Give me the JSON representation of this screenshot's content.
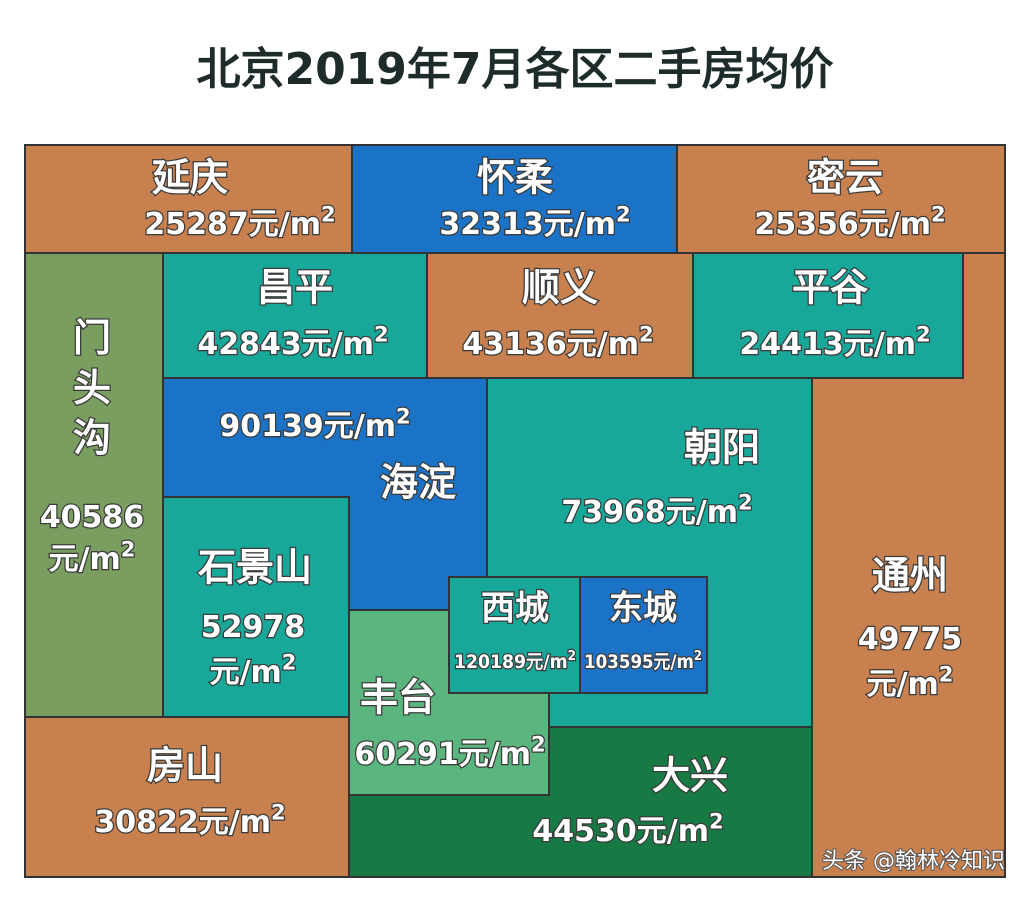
{
  "title": "北京2019年7月各区二手房均价",
  "unit": "元/m",
  "unit_power": "2",
  "regions": [
    {
      "name": "延庆",
      "price": 25287
    },
    {
      "name": "怀柔",
      "price": 32313
    },
    {
      "name": "密云",
      "price": 25356
    },
    {
      "name": "昌平",
      "price": 42843
    },
    {
      "name": "顺义",
      "price": 43136
    },
    {
      "name": "平谷",
      "price": 24413
    },
    {
      "name": "门头沟",
      "price": 40586
    },
    {
      "name": "海淀",
      "price": 90139
    },
    {
      "name": "朝阳",
      "price": 73968
    },
    {
      "name": "石景山",
      "price": 52978
    },
    {
      "name": "西城",
      "price": 120189
    },
    {
      "name": "东城",
      "price": 103595
    },
    {
      "name": "丰台",
      "price": 60291
    },
    {
      "name": "通州",
      "price": 49775
    },
    {
      "name": "房山",
      "price": 30822
    },
    {
      "name": "大兴",
      "price": 44530
    }
  ],
  "watermark": "头条 @翰林冷知识"
}
